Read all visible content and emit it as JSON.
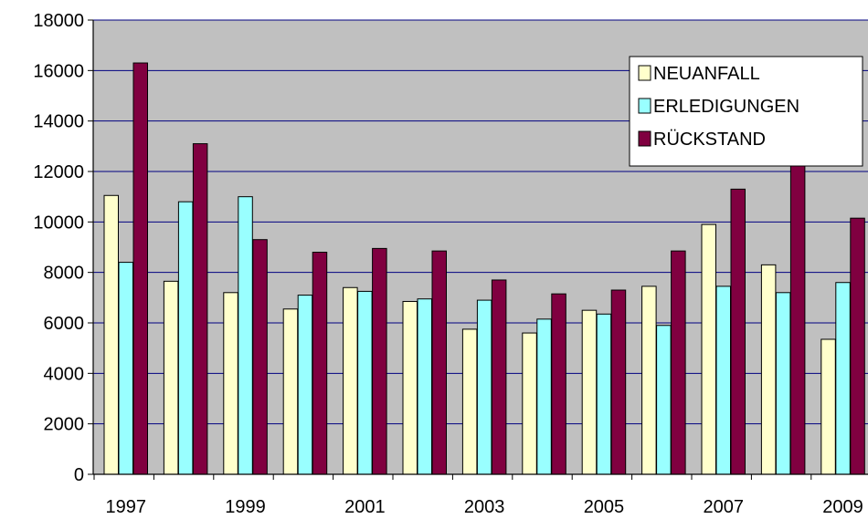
{
  "chart_data": {
    "type": "bar",
    "title": "",
    "xlabel": "",
    "ylabel": "",
    "categories": [
      "1997",
      "1998",
      "1999",
      "2000",
      "2001",
      "2002",
      "2003",
      "2004",
      "2005",
      "2006",
      "2007",
      "2008",
      "2009"
    ],
    "x_tick_labels": [
      "1997",
      "1999",
      "2001",
      "2003",
      "2005",
      "2007",
      "2009"
    ],
    "y_tick_labels": [
      "0",
      "2000",
      "4000",
      "6000",
      "8000",
      "10000",
      "12000",
      "14000",
      "16000",
      "18000"
    ],
    "ylim": [
      0,
      18000
    ],
    "grid": true,
    "legend_position": "top-right",
    "series": [
      {
        "name": "NEUANFALL",
        "color": "#ffffcc",
        "values": [
          11050,
          7650,
          7200,
          6550,
          7400,
          6850,
          5750,
          5600,
          6500,
          7450,
          9900,
          8300,
          5350
        ]
      },
      {
        "name": "ERLEDIGUNGEN",
        "color": "#99ffff",
        "values": [
          8400,
          10800,
          11000,
          7100,
          7250,
          6950,
          6900,
          6150,
          6350,
          5900,
          7450,
          7200,
          7600
        ]
      },
      {
        "name": "RÜCKSTAND",
        "color": "#800040",
        "values": [
          16300,
          13100,
          9300,
          8800,
          8950,
          8850,
          7700,
          7150,
          7300,
          8850,
          11300,
          12500,
          10150
        ]
      }
    ],
    "plot_background": "#c0c0c0",
    "gridline_color": "#000080"
  }
}
